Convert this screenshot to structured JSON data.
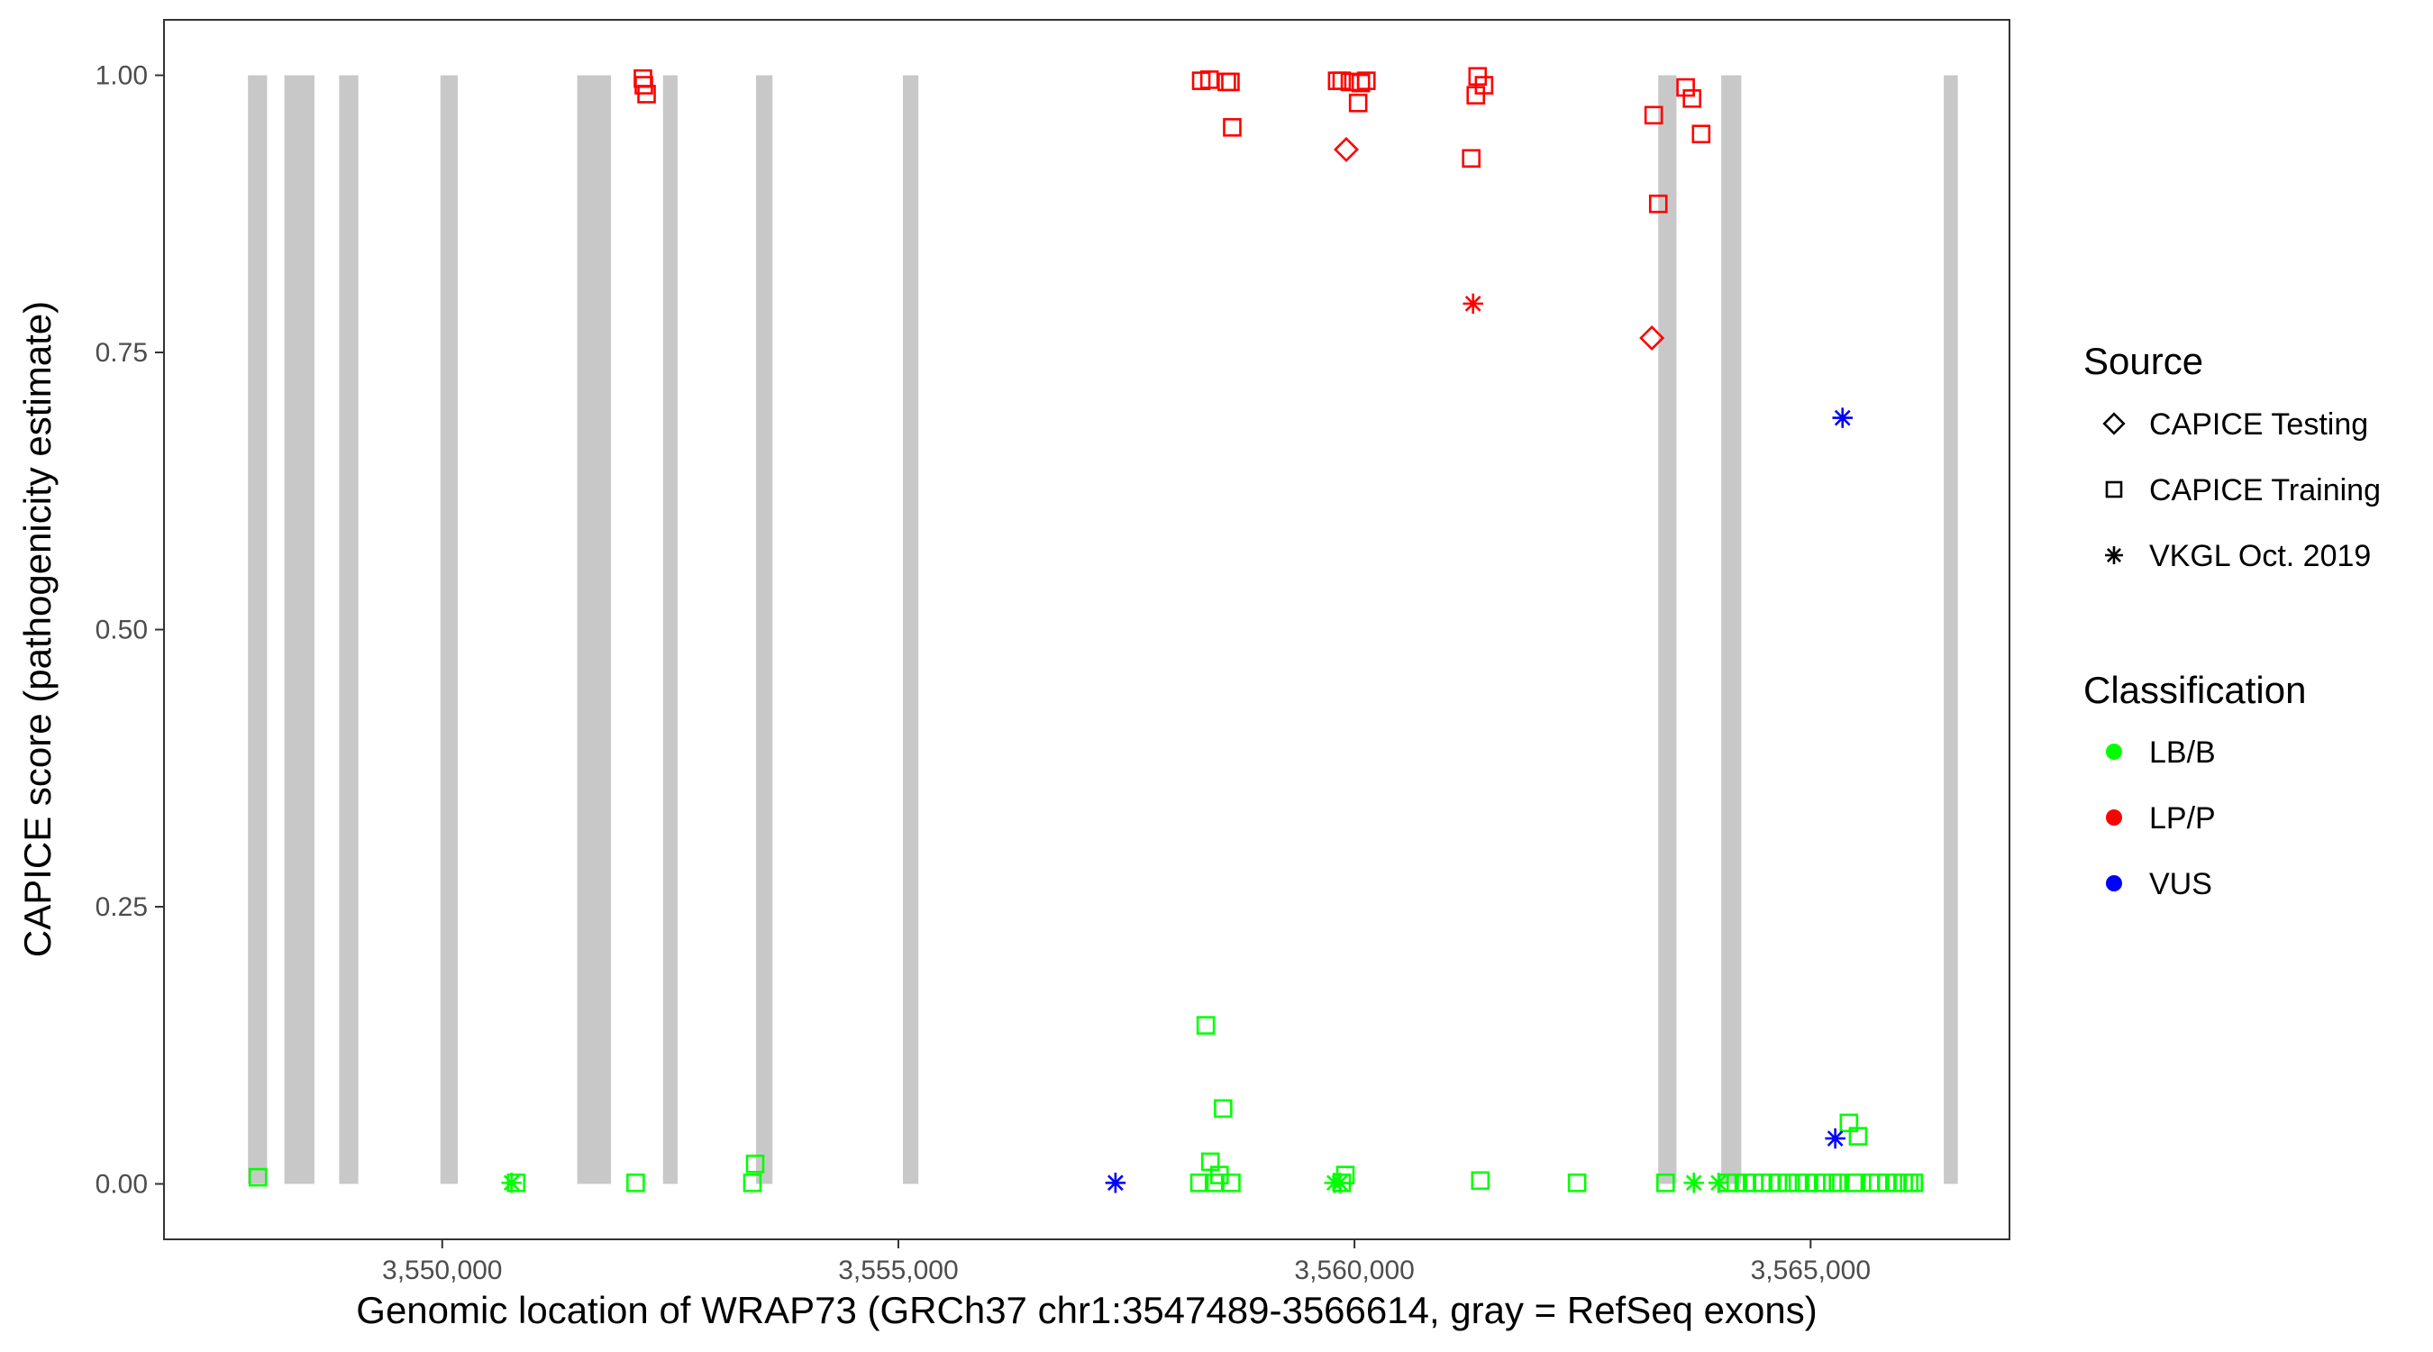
{
  "chart_data": {
    "type": "scatter",
    "title": "",
    "xlabel": "Genomic location of WRAP73 (GRCh37 chr1:3547489-3566614, gray = RefSeq exons)",
    "ylabel": "CAPICE score (pathogenicity estimate)",
    "xlim": [
      3546950,
      3567180
    ],
    "ylim": [
      -0.05,
      1.05
    ],
    "x_ticks": [
      3550000,
      3555000,
      3560000,
      3565000
    ],
    "x_tick_labels": [
      "3,550,000",
      "3,555,000",
      "3,560,000",
      "3,565,000"
    ],
    "y_ticks": [
      0,
      0.25,
      0.5,
      0.75,
      1.0
    ],
    "y_tick_labels": [
      "0.00",
      "0.25",
      "0.50",
      "0.75",
      "1.00"
    ],
    "grid": false,
    "exons": [
      [
        3547870,
        3548080
      ],
      [
        3548270,
        3548600
      ],
      [
        3548870,
        3549080
      ],
      [
        3549980,
        3550170
      ],
      [
        3551480,
        3551850
      ],
      [
        3552420,
        3552580
      ],
      [
        3553440,
        3553620
      ],
      [
        3555050,
        3555220
      ],
      [
        3563330,
        3563530
      ],
      [
        3564020,
        3564240
      ],
      [
        3566460,
        3566614
      ]
    ],
    "legend": {
      "position": "right",
      "source_title": "Source",
      "source_items": [
        {
          "label": "CAPICE Testing",
          "shape": "diamond"
        },
        {
          "label": "CAPICE Training",
          "shape": "square"
        },
        {
          "label": "VKGL Oct. 2019",
          "shape": "asterisk"
        }
      ],
      "class_title": "Classification",
      "class_items": [
        {
          "label": "LB/B",
          "color": "#00ff00"
        },
        {
          "label": "LP/P",
          "color": "#ff0000"
        },
        {
          "label": "VUS",
          "color": "#0000ff"
        }
      ]
    },
    "series": [
      {
        "source": "CAPICE Training",
        "classification": "LB/B",
        "points": [
          [
            3547980,
            0.006
          ],
          [
            3550810,
            0.001
          ],
          [
            3552120,
            0.001
          ],
          [
            3553400,
            0.001
          ],
          [
            3553430,
            0.018
          ],
          [
            3558300,
            0.001
          ],
          [
            3558370,
            0.143
          ],
          [
            3558420,
            0.02
          ],
          [
            3558460,
            0.001
          ],
          [
            3558520,
            0.008
          ],
          [
            3558560,
            0.068
          ],
          [
            3558650,
            0.001
          ],
          [
            3559860,
            0.001
          ],
          [
            3559900,
            0.008
          ],
          [
            3561380,
            0.003
          ],
          [
            3562440,
            0.001
          ],
          [
            3563410,
            0.001
          ],
          [
            3564090,
            0.001
          ],
          [
            3564180,
            0.001
          ],
          [
            3564290,
            0.001
          ],
          [
            3564380,
            0.001
          ],
          [
            3564480,
            0.001
          ],
          [
            3564560,
            0.001
          ],
          [
            3564640,
            0.001
          ],
          [
            3564750,
            0.001
          ],
          [
            3564860,
            0.001
          ],
          [
            3564960,
            0.001
          ],
          [
            3565060,
            0.001
          ],
          [
            3565160,
            0.001
          ],
          [
            3565240,
            0.001
          ],
          [
            3565300,
            0.001
          ],
          [
            3565420,
            0.055
          ],
          [
            3565470,
            0.001
          ],
          [
            3565520,
            0.043
          ],
          [
            3565500,
            0.001
          ],
          [
            3565660,
            0.001
          ],
          [
            3565740,
            0.001
          ],
          [
            3565830,
            0.001
          ],
          [
            3565940,
            0.001
          ],
          [
            3566020,
            0.001
          ],
          [
            3566080,
            0.001
          ],
          [
            3566130,
            0.001
          ]
        ]
      },
      {
        "source": "CAPICE Training",
        "classification": "LP/P",
        "points": [
          [
            3552200,
            0.997
          ],
          [
            3552210,
            0.991
          ],
          [
            3552240,
            0.983
          ],
          [
            3558320,
            0.995
          ],
          [
            3558410,
            0.996
          ],
          [
            3558600,
            0.994
          ],
          [
            3558640,
            0.994
          ],
          [
            3558660,
            0.953
          ],
          [
            3559810,
            0.995
          ],
          [
            3559860,
            0.995
          ],
          [
            3559950,
            0.994
          ],
          [
            3560040,
            0.975
          ],
          [
            3560070,
            0.993
          ],
          [
            3560130,
            0.995
          ],
          [
            3561280,
            0.925
          ],
          [
            3561330,
            0.982
          ],
          [
            3561350,
            0.999
          ],
          [
            3561420,
            0.991
          ],
          [
            3563280,
            0.964
          ],
          [
            3563330,
            0.884
          ],
          [
            3563630,
            0.989
          ],
          [
            3563700,
            0.979
          ],
          [
            3563800,
            0.947
          ]
        ]
      },
      {
        "source": "CAPICE Testing",
        "classification": "LP/P",
        "points": [
          [
            3559910,
            0.933
          ],
          [
            3563260,
            0.763
          ]
        ]
      },
      {
        "source": "VKGL Oct. 2019",
        "classification": "LB/B",
        "points": [
          [
            3550760,
            0.001
          ],
          [
            3559780,
            0.001
          ],
          [
            3559840,
            0.001
          ],
          [
            3563720,
            0.001
          ],
          [
            3563990,
            0.001
          ]
        ]
      },
      {
        "source": "VKGL Oct. 2019",
        "classification": "LP/P",
        "points": [
          [
            3561300,
            0.794
          ]
        ]
      },
      {
        "source": "VKGL Oct. 2019",
        "classification": "VUS",
        "points": [
          [
            3557380,
            0.001
          ],
          [
            3565270,
            0.041
          ],
          [
            3565350,
            0.691
          ]
        ]
      }
    ]
  }
}
